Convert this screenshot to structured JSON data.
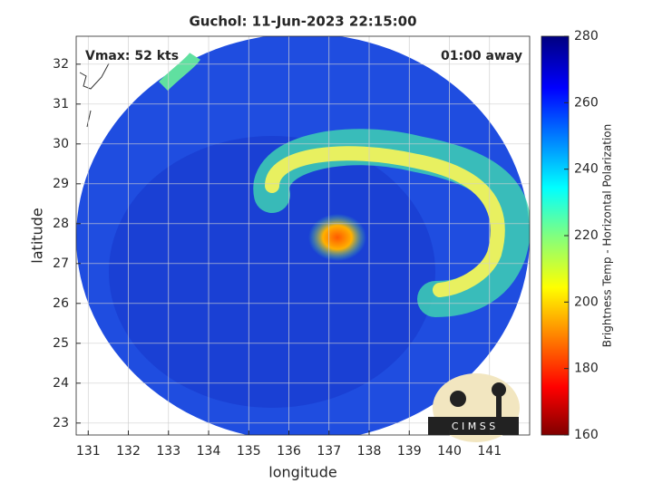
{
  "chart_data": {
    "type": "map",
    "title": "Guchol: 11-Jun-2023 22:15:00",
    "xlabel": "longitude",
    "ylabel": "latitude",
    "annotations": [
      "Vmax: 52 kts",
      "01:00 away"
    ],
    "xlim": [
      130.7,
      142.0
    ],
    "xticks": [
      131,
      132,
      133,
      134,
      135,
      136,
      137,
      138,
      139,
      140,
      141
    ],
    "ylim": [
      22.7,
      32.7
    ],
    "yticks": [
      23,
      24,
      25,
      26,
      27,
      28,
      29,
      30,
      31,
      32
    ],
    "grid": true,
    "colorbar": {
      "label": "Brightness Temp - Horizontal Polarization",
      "lim": [
        160,
        280
      ],
      "ticks": [
        160,
        180,
        200,
        220,
        240,
        260,
        280
      ]
    },
    "logo_text": "C I M S S"
  }
}
